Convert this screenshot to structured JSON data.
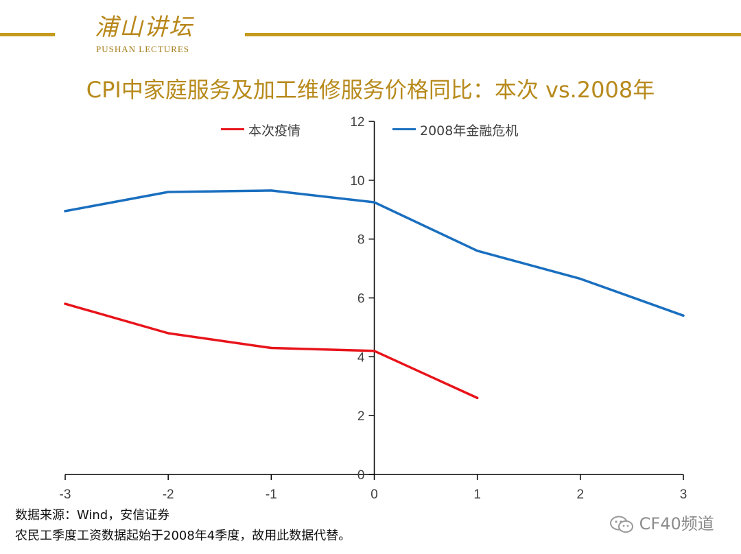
{
  "header": {
    "logo_cn": "浦山讲坛",
    "logo_en": "PUSHAN LECTURES"
  },
  "colors": {
    "gold": "#C59A1E",
    "series_red": "#E8141B",
    "series_blue": "#1A6FBF"
  },
  "chart_data": {
    "type": "line",
    "title": "CPI中家庭服务及加工维修服务价格同比：本次 vs.2008年",
    "xlabel": "",
    "ylabel": "",
    "x": [
      -3,
      -2,
      -1,
      0,
      1,
      2,
      3
    ],
    "x_ticks": [
      "-3",
      "-2",
      "-1",
      "0",
      "1",
      "2",
      "3"
    ],
    "y_ticks": [
      "0",
      "2",
      "4",
      "6",
      "8",
      "10",
      "12"
    ],
    "xlim": [
      -3,
      3
    ],
    "ylim": [
      0,
      12
    ],
    "grid": false,
    "legend_position": "top",
    "series": [
      {
        "name": "本次疫情",
        "color": "#E8141B",
        "x": [
          -3,
          -2,
          -1,
          0,
          1
        ],
        "values": [
          5.8,
          4.8,
          4.3,
          4.2,
          2.6
        ]
      },
      {
        "name": "2008年金融危机",
        "color": "#1A6FBF",
        "x": [
          -3,
          -2,
          -1,
          0,
          1,
          2,
          3
        ],
        "values": [
          8.95,
          9.6,
          9.65,
          9.25,
          7.6,
          6.65,
          5.4
        ]
      }
    ]
  },
  "footer": {
    "source_line1": "数据来源：Wind，安信证券",
    "source_line2": "农民工季度工资数据起始于2008年4季度，故用此数据代替。",
    "watermark": "CF40频道",
    "watermark_icon": "wechat-icon"
  }
}
